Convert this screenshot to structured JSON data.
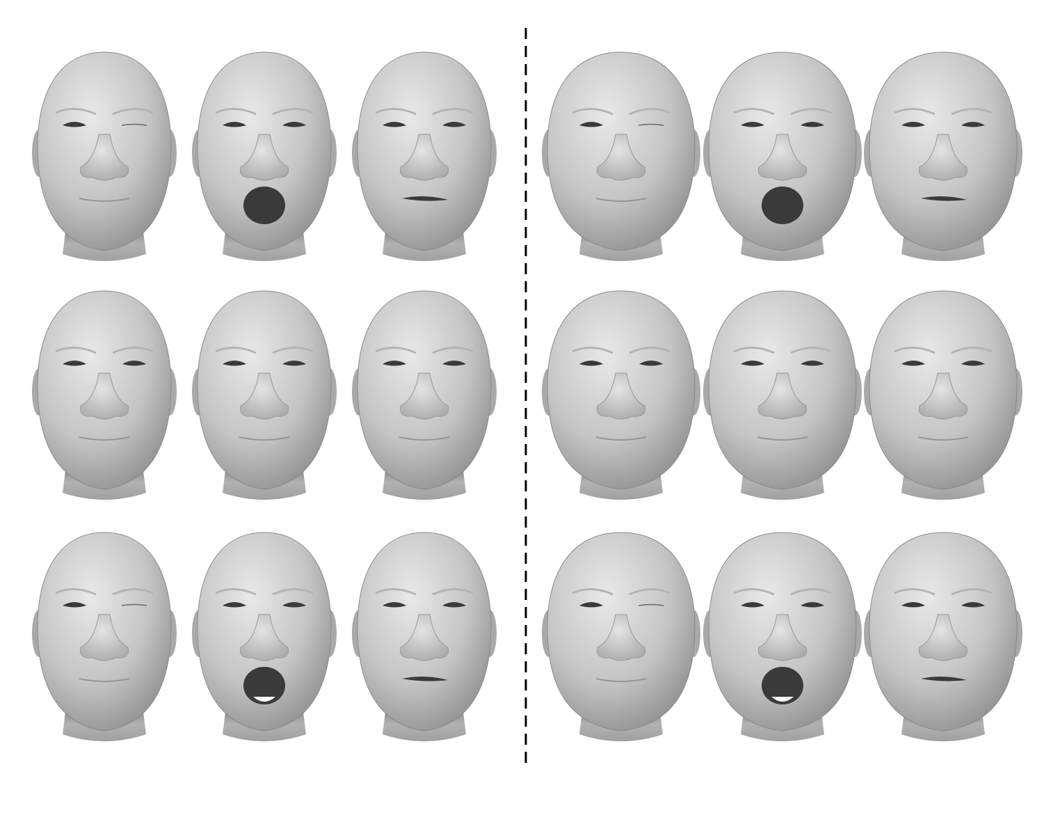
{
  "figure": {
    "panels": [
      {
        "side": "left",
        "rows": [
          [
            "wink",
            "yawn",
            "smirk"
          ],
          [
            "neutral",
            "neutral",
            "neutral"
          ],
          [
            "wink",
            "yawn",
            "smirk"
          ]
        ]
      },
      {
        "side": "right",
        "rows": [
          [
            "wink",
            "yawn",
            "smirk"
          ],
          [
            "neutral",
            "neutral",
            "neutral"
          ],
          [
            "wink",
            "yawn",
            "smirk"
          ]
        ]
      }
    ],
    "colors": {
      "background": "#ffffff",
      "skin": "#bcbcbc",
      "skin_highlight": "#e6e6e6",
      "skin_shadow": "#7e7e7e",
      "cavity": "#3a3a3a",
      "divider": "#000000"
    }
  }
}
